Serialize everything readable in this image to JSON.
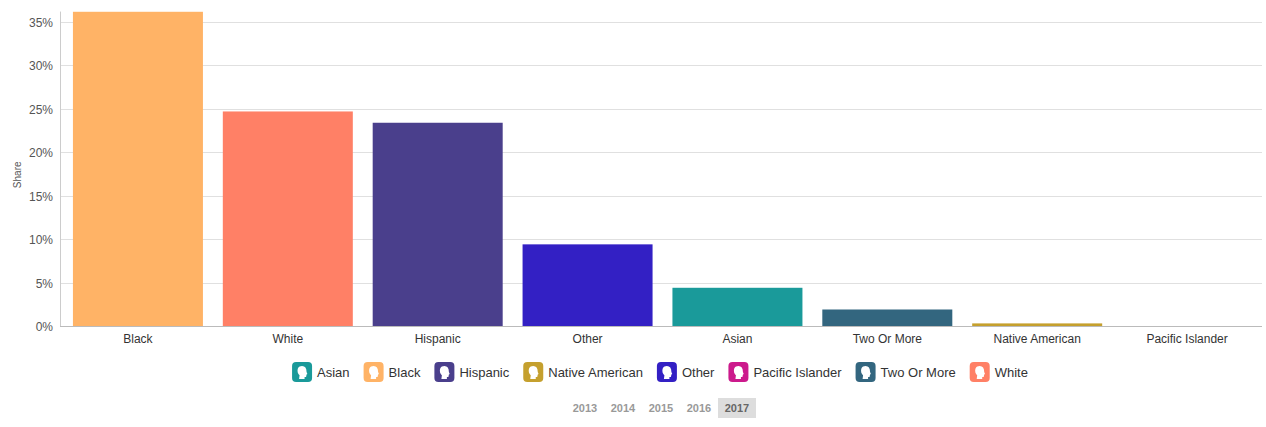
{
  "chart_data": {
    "type": "bar",
    "y_label": "Share",
    "categories": [
      "Black",
      "White",
      "Hispanic",
      "Other",
      "Asian",
      "Two Or More",
      "Native American",
      "Pacific Islander"
    ],
    "values": [
      36.2,
      24.7,
      23.4,
      9.4,
      4.4,
      1.9,
      0.3,
      0
    ],
    "colors": [
      "#ffb366",
      "#ff8066",
      "#4a3f8c",
      "#3320c4",
      "#1a9a9a",
      "#33667f",
      "#c5a02e",
      "#cc1a8c"
    ],
    "ylim": [
      0,
      36.2
    ],
    "yticks": [
      {
        "value": 0,
        "label": "0%"
      },
      {
        "value": 5,
        "label": "5%"
      },
      {
        "value": 10,
        "label": "10%"
      },
      {
        "value": 15,
        "label": "15%"
      },
      {
        "value": 20,
        "label": "20%"
      },
      {
        "value": 25,
        "label": "25%"
      },
      {
        "value": 30,
        "label": "30%"
      },
      {
        "value": 35,
        "label": "35%"
      }
    ],
    "grid": true,
    "legend": "bottom"
  },
  "year_selector": {
    "years": [
      "2013",
      "2014",
      "2015",
      "2016",
      "2017"
    ],
    "selected": "2017"
  }
}
